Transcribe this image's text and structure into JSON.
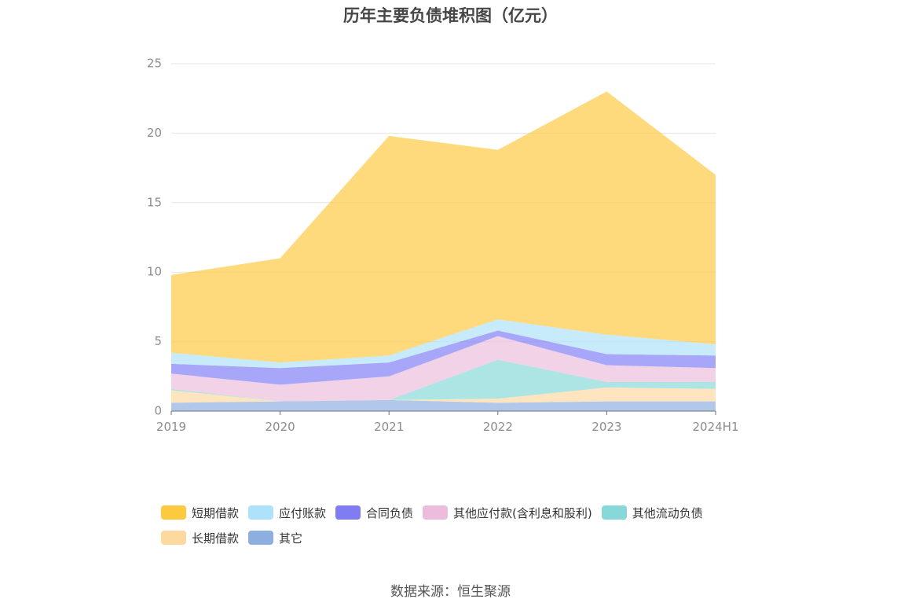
{
  "chart_data": {
    "type": "area",
    "title": "历年主要负债堆积图（亿元）",
    "categories": [
      "2019",
      "2020",
      "2021",
      "2022",
      "2023",
      "2024H1"
    ],
    "ylim": [
      0,
      25
    ],
    "yticks": [
      "0",
      "5",
      "10",
      "15",
      "20",
      "25"
    ],
    "grid": true,
    "legend_position": "bottom",
    "stacked": true,
    "series": [
      {
        "name": "其它",
        "color": "#8eaee0",
        "values": [
          0.6,
          0.7,
          0.8,
          0.6,
          0.7,
          0.7
        ]
      },
      {
        "name": "长期借款",
        "color": "#fdd9a0",
        "values": [
          0.9,
          0.0,
          0.0,
          0.3,
          1.0,
          0.9
        ]
      },
      {
        "name": "其他流动负债",
        "color": "#86d9d8",
        "values": [
          0.1,
          0.0,
          0.0,
          2.8,
          0.4,
          0.5
        ]
      },
      {
        "name": "其他应付款(含利息和股利)",
        "color": "#ebbcdc",
        "values": [
          1.1,
          1.2,
          1.7,
          1.7,
          1.2,
          1.0
        ]
      },
      {
        "name": "合同负债",
        "color": "#7f7cf4",
        "values": [
          0.7,
          1.2,
          1.0,
          0.4,
          0.8,
          0.9
        ]
      },
      {
        "name": "应付账款",
        "color": "#aee2fb",
        "values": [
          0.8,
          0.4,
          0.5,
          0.8,
          1.4,
          0.8
        ]
      },
      {
        "name": "短期借款",
        "color": "#fdc93f",
        "values": [
          5.6,
          7.5,
          15.8,
          12.2,
          17.5,
          12.2
        ]
      }
    ]
  },
  "legend": [
    {
      "label": "短期借款",
      "color": "#fdc93f"
    },
    {
      "label": "应付账款",
      "color": "#aee2fb"
    },
    {
      "label": "合同负债",
      "color": "#7f7cf4"
    },
    {
      "label": "其他应付款(含利息和股利)",
      "color": "#ebbcdc"
    },
    {
      "label": "其他流动负债",
      "color": "#86d9d8"
    },
    {
      "label": "长期借款",
      "color": "#fdd9a0"
    },
    {
      "label": "其它",
      "color": "#8eaee0"
    }
  ],
  "source": "数据来源：恒生聚源"
}
